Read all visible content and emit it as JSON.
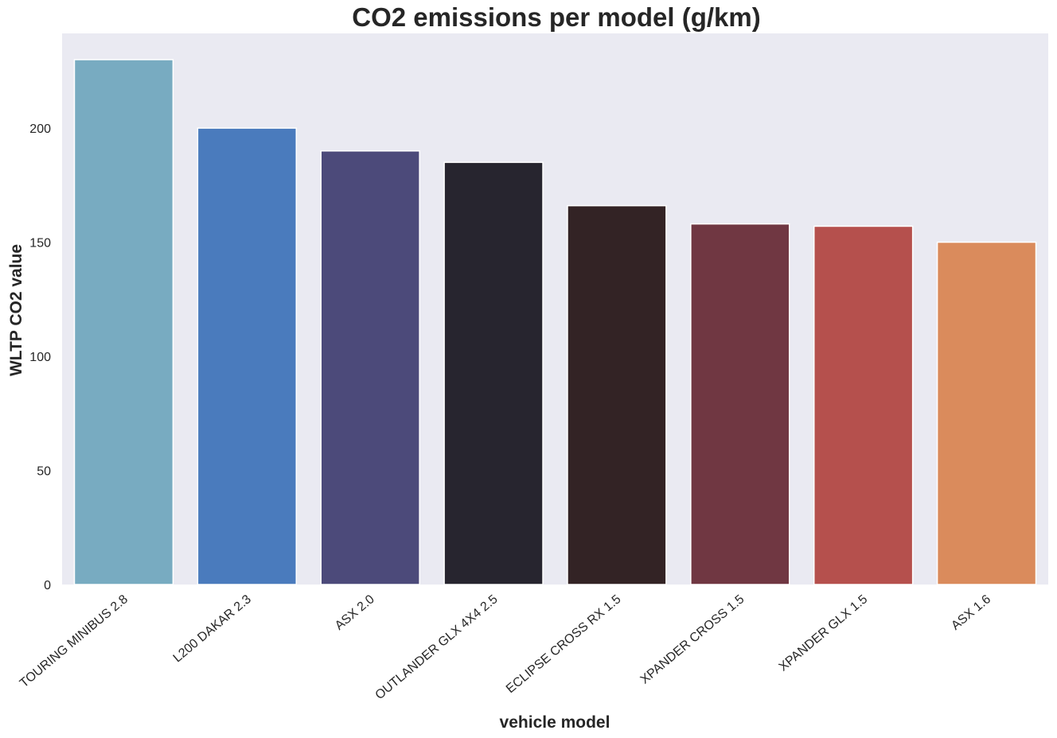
{
  "chart_data": {
    "type": "bar",
    "title": "CO2 emissions per model (g/km)",
    "xlabel": "vehicle model",
    "ylabel": "WLTP CO2 value",
    "categories": [
      "TOURING MINIBUS 2.8",
      "L200 DAKAR 2.3",
      "ASX 2.0",
      "OUTLANDER GLX 4X4 2.5",
      "ECLIPSE CROSS RX 1.5",
      "XPANDER CROSS 1.5",
      "XPANDER GLX 1.5",
      "ASX 1.6"
    ],
    "values": [
      230,
      200,
      190,
      185,
      166,
      158,
      157,
      150
    ],
    "colors": [
      "#78abc1",
      "#4a7bbd",
      "#4c4a7a",
      "#27252f",
      "#332325",
      "#703742",
      "#b5504d",
      "#da8b5c"
    ],
    "ylim": [
      0,
      241.5
    ],
    "yticks": [
      0,
      50,
      100,
      150,
      200
    ],
    "grid": false,
    "background": "#eaeaf2"
  }
}
